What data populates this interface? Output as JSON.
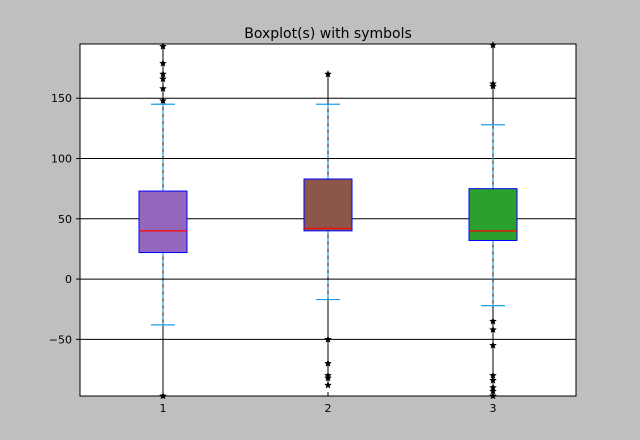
{
  "chart_data": {
    "type": "box",
    "title": "Boxplot(s) with symbols",
    "xlabel": "",
    "ylabel": "",
    "categories": [
      "1",
      "2",
      "3"
    ],
    "ylim": [
      -97,
      195
    ],
    "yticks": [
      -50,
      0,
      50,
      100,
      150
    ],
    "ytick_labels": [
      "−50",
      "0",
      "50",
      "100",
      "150"
    ],
    "grid": "horizontal",
    "boxes": [
      {
        "name": "1",
        "color": "#9467bd",
        "q1": 22,
        "median": 40,
        "q3": 73,
        "whisker_low": -38,
        "whisker_high": 145,
        "fliers": [
          193,
          179,
          170,
          166,
          158,
          148,
          -97
        ]
      },
      {
        "name": "2",
        "color": "#8c564b",
        "q1": 40,
        "median": 42,
        "q3": 83,
        "whisker_low": -17,
        "whisker_high": 145,
        "fliers": [
          170,
          -50,
          -70,
          -80,
          -82,
          -88
        ]
      },
      {
        "name": "3",
        "color": "#2ca02c",
        "q1": 32,
        "median": 40,
        "q3": 75,
        "whisker_low": -22,
        "whisker_high": 128,
        "fliers": [
          194,
          162,
          160,
          -35,
          -42,
          -55,
          -80,
          -84,
          -90,
          -93,
          -97
        ]
      }
    ],
    "median_color": "#ff0000",
    "box_edge_color": "#0000ff",
    "whisker_color": "#1f9ee8",
    "cap_color": "#1f9ee8",
    "flier_marker": "star",
    "flier_color": "#000000",
    "axes_background": "#ffffff",
    "figure_background": "#bfbfbf"
  }
}
